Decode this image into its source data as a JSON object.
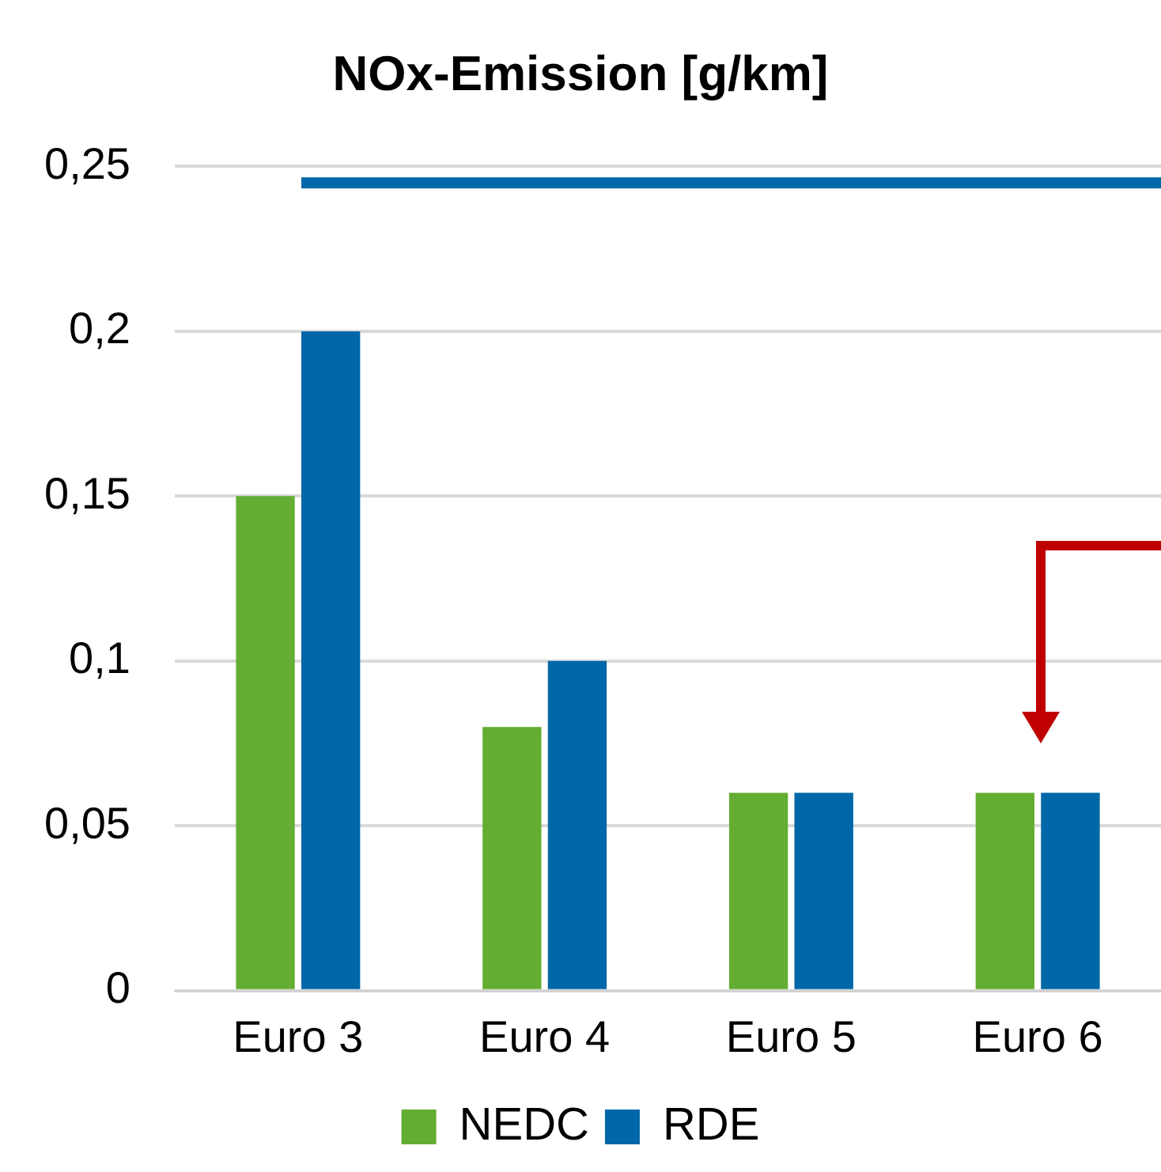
{
  "chart_data": {
    "type": "bar",
    "title": "NOx-Emission [g/km]",
    "categories": [
      "Euro 3",
      "Euro 4",
      "Euro 5",
      "Euro 6"
    ],
    "series": [
      {
        "name": "NEDC",
        "color": "#64ad33",
        "values": [
          0.15,
          0.08,
          0.06,
          0.06
        ]
      },
      {
        "name": "RDE",
        "color": "#0067a8",
        "values": [
          0.2,
          0.1,
          0.06,
          0.06
        ]
      }
    ],
    "ylim": [
      0,
      0.25
    ],
    "yticks": [
      0,
      {
        "value": 0.05,
        "label": "0,05"
      },
      {
        "value": 0.1,
        "label": "0,1"
      },
      {
        "value": 0.15,
        "label": "0,15"
      },
      {
        "value": 0.2,
        "label": "0,2"
      },
      {
        "value": 0.25,
        "label": "0,25"
      }
    ],
    "ref_lines": [
      {
        "axis": "y",
        "value": 0.245,
        "color": "#0067a8"
      }
    ],
    "grid": "y",
    "legend": "bottom"
  }
}
